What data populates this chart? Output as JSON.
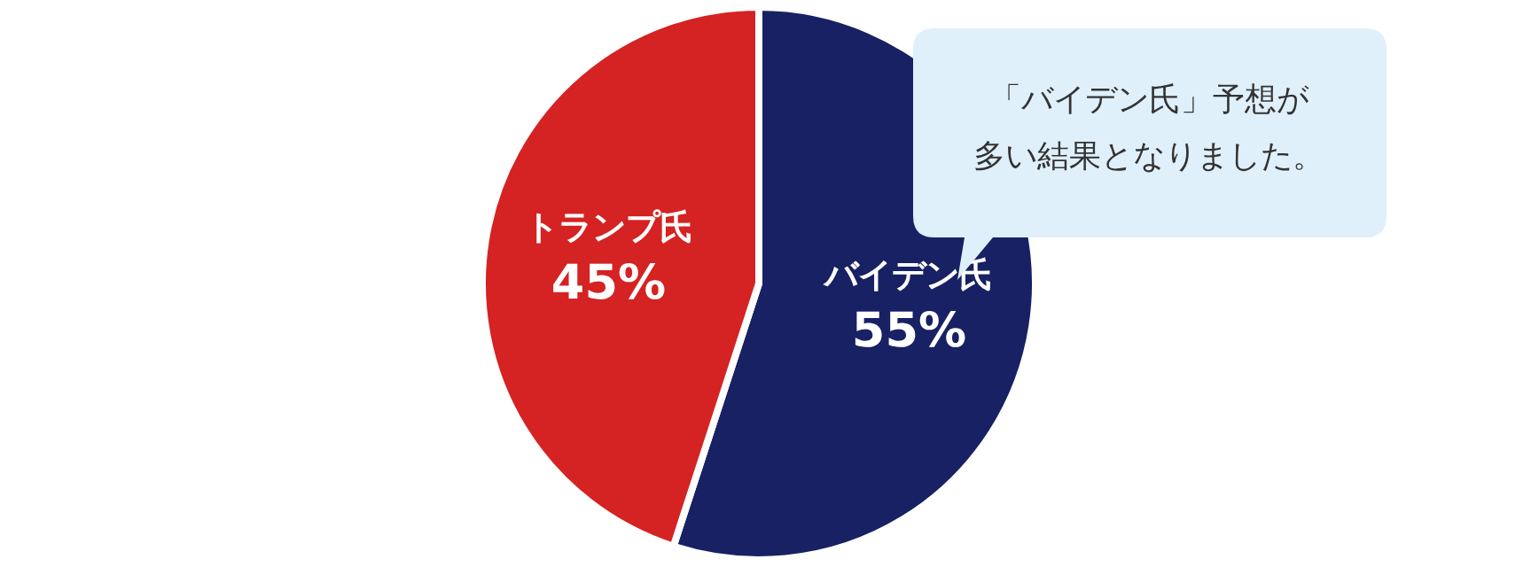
{
  "chart_data": {
    "type": "pie",
    "categories": [
      "バイデン氏",
      "トランプ氏"
    ],
    "values": [
      55,
      45
    ],
    "colors": [
      "#172163",
      "#d52222"
    ],
    "value_labels": [
      "55%",
      "45%"
    ],
    "annotations": [
      "「バイデン氏」予想が多い結果となりました。"
    ]
  }
}
